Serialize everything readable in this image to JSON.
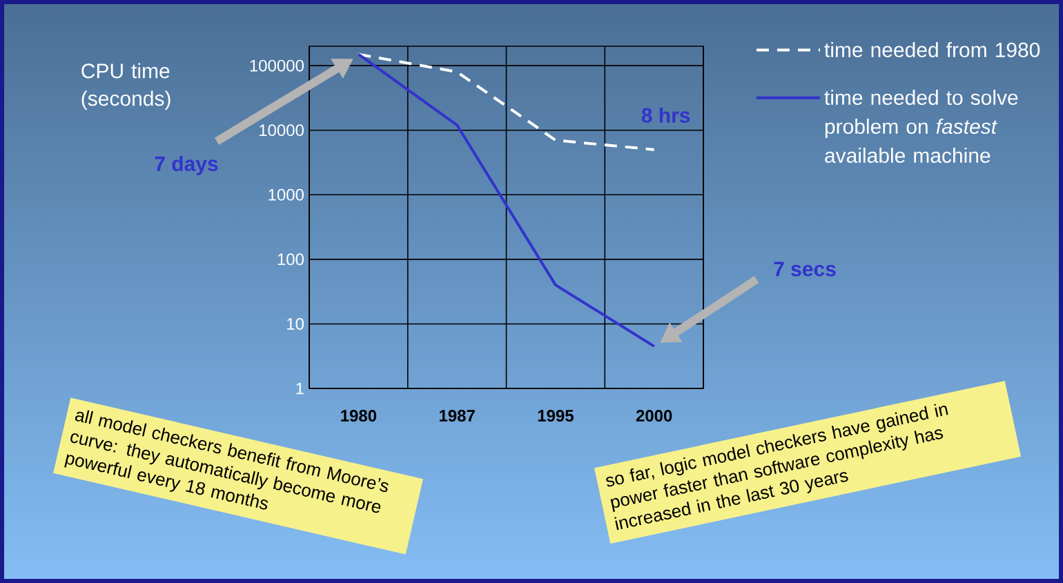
{
  "chart_data": {
    "type": "line",
    "ylabel": "CPU time (seconds)",
    "categories": [
      "1980",
      "1987",
      "1995",
      "2000"
    ],
    "series": [
      {
        "name": "time needed from 1980",
        "color": "#ffffff",
        "line_style": "dashed",
        "values": [
          150000,
          80000,
          7000,
          5000
        ]
      },
      {
        "name": "time needed to solve problem on *fastest* available machine",
        "color": "#3333cc",
        "line_style": "solid",
        "values": [
          150000,
          12000,
          40,
          4.5
        ]
      }
    ],
    "ylim": [
      1,
      200000
    ],
    "yticks": [
      1,
      10,
      100,
      1000,
      10000,
      100000
    ],
    "log": true,
    "grid": true,
    "legend": "right",
    "annotations": [
      "7 days",
      {
        "text": "8 hrs",
        "x": "2000",
        "y": 5000
      },
      "7 secs",
      "all model checkers benefit from Moore’s curve: they automatically become more powerful every 18 months",
      "so far, logic model checkers have gained in power faster than software complexity has increased in the last 30 years"
    ]
  }
}
